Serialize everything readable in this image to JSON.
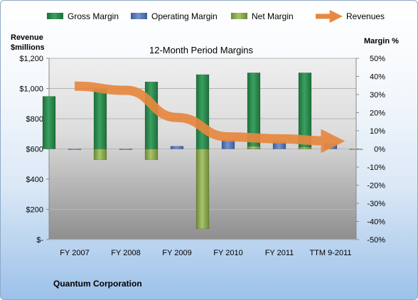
{
  "chart_data": {
    "type": "bar",
    "title": "12-Month Period Margins",
    "categories": [
      "FY 2007",
      "FY 2008",
      "FY 2009",
      "FY 2010",
      "FY 2011",
      "TTM 9-2011"
    ],
    "series": [
      {
        "name": "Gross Margin",
        "axis": "right",
        "values": [
          29,
          33,
          37,
          41,
          42,
          42
        ]
      },
      {
        "name": "Operating Margin",
        "axis": "right",
        "values": [
          0,
          0,
          1.5,
          5,
          4,
          3
        ]
      },
      {
        "name": "Net Margin",
        "axis": "right",
        "values": [
          -6,
          -6,
          -44,
          1.5,
          1,
          0
        ]
      },
      {
        "name": "Revenues",
        "axis": "left",
        "type": "line",
        "values": [
          1016,
          988,
          808,
          680,
          667,
          652
        ]
      }
    ],
    "y_left": {
      "label_line1": "Revenue",
      "label_line2": "$millions",
      "range": [
        0,
        1200
      ],
      "ticks": [
        "$1,200",
        "$1,000",
        "$800",
        "$600",
        "$400",
        "$200",
        "$-"
      ]
    },
    "y_right": {
      "label": "Margin %",
      "range": [
        -50,
        50
      ],
      "ticks": [
        "50%",
        "40%",
        "30%",
        "20%",
        "10%",
        "0%",
        "-10%",
        "-20%",
        "-30%",
        "-40%",
        "-50%"
      ]
    },
    "legend_position": "top",
    "footer": "Quantum Corporation",
    "colors": {
      "gross": "#2a8a4b",
      "operating": "#4f71b5",
      "net": "#86a84a",
      "revenues": "#e7883f"
    }
  }
}
